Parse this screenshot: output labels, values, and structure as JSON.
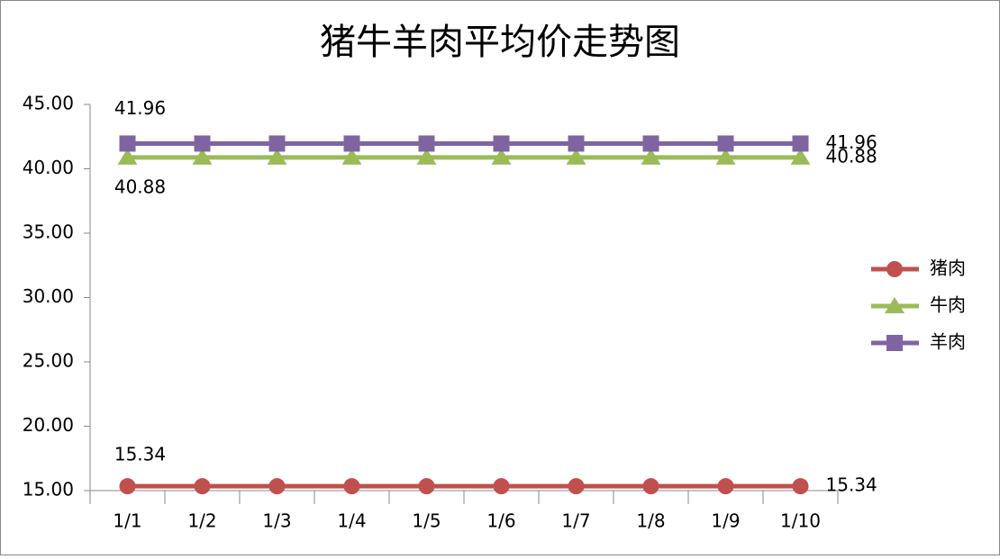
{
  "chart_data": {
    "type": "line",
    "title": "猪牛羊肉平均价走势图",
    "categories": [
      "1/1",
      "1/2",
      "1/3",
      "1/4",
      "1/5",
      "1/6",
      "1/7",
      "1/8",
      "1/9",
      "1/10"
    ],
    "series": [
      {
        "name": "猪肉",
        "color": "#c0504d",
        "marker": "circle",
        "values": [
          15.34,
          15.34,
          15.34,
          15.34,
          15.34,
          15.34,
          15.34,
          15.34,
          15.34,
          15.34
        ]
      },
      {
        "name": "牛肉",
        "color": "#9bbb59",
        "marker": "triangle",
        "values": [
          40.88,
          40.88,
          40.88,
          40.88,
          40.88,
          40.88,
          40.88,
          40.88,
          40.88,
          40.88
        ]
      },
      {
        "name": "羊肉",
        "color": "#8064a2",
        "marker": "square",
        "values": [
          41.96,
          41.96,
          41.96,
          41.96,
          41.96,
          41.96,
          41.96,
          41.96,
          41.96,
          41.96
        ]
      }
    ],
    "ylim": [
      15,
      45
    ],
    "yticks": [
      {
        "value": 15,
        "label": "15.00"
      },
      {
        "value": 20,
        "label": "20.00"
      },
      {
        "value": 25,
        "label": "25.00"
      },
      {
        "value": 30,
        "label": "30.00"
      },
      {
        "value": 35,
        "label": "35.00"
      },
      {
        "value": 40,
        "label": "40.00"
      },
      {
        "value": 45,
        "label": "45.00"
      }
    ],
    "grid": false,
    "legend": "right"
  }
}
